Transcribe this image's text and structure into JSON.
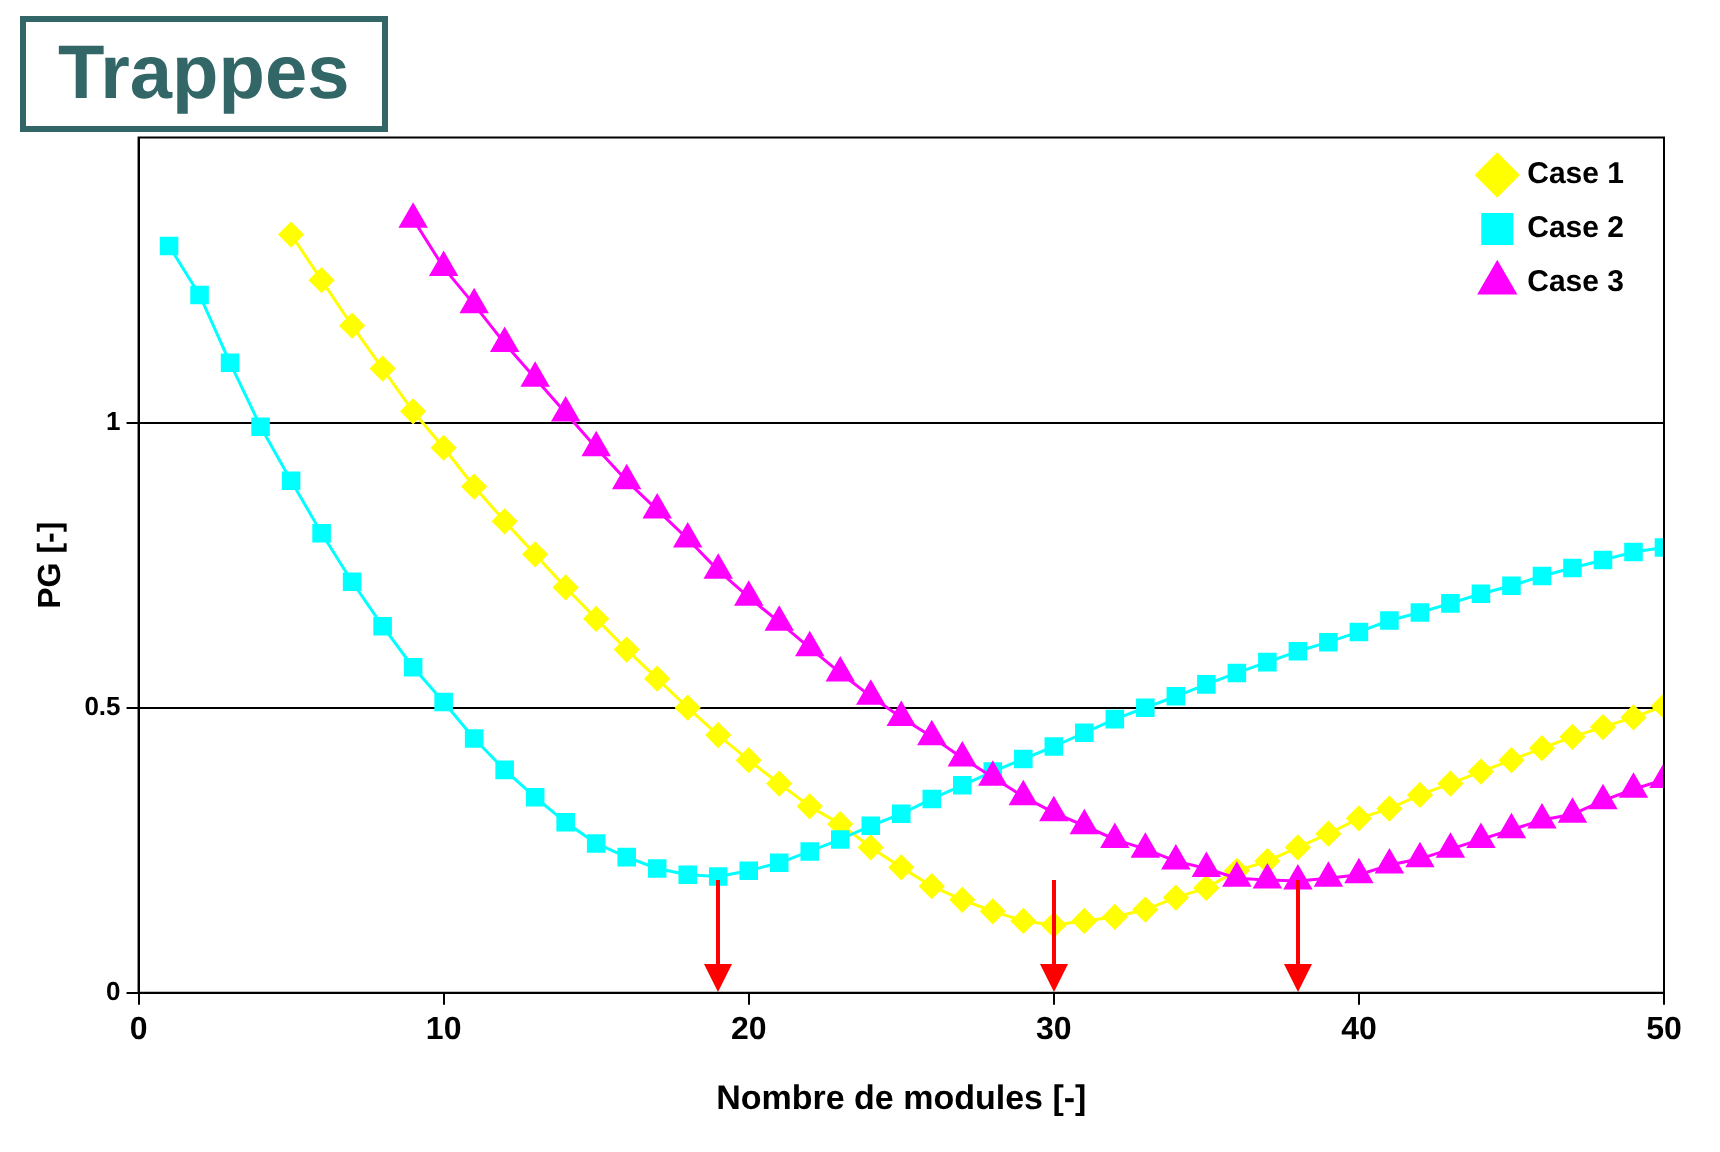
{
  "chart_data": {
    "type": "line",
    "title": "Trappes",
    "xlabel": "Nombre de modules [-]",
    "ylabel": "PG [-]",
    "xlim": [
      0,
      50
    ],
    "xticks": [
      0,
      10,
      20,
      30,
      40,
      50
    ],
    "ylim": [
      0,
      1.5
    ],
    "yticks": [
      0,
      0.5,
      1
    ],
    "grid": "y",
    "legend": "top right",
    "line_style": "solid",
    "series": [
      {
        "name": "Case 1",
        "color": "#ffff00",
        "marker": "diamond",
        "x": [
          5,
          6,
          7,
          8,
          9,
          10,
          11,
          12,
          13,
          14,
          15,
          16,
          17,
          18,
          19,
          20,
          21,
          22,
          23,
          24,
          25,
          26,
          27,
          28,
          29,
          30,
          31,
          32,
          33,
          34,
          35,
          36,
          37,
          38,
          39,
          40,
          41,
          42,
          43,
          44,
          45,
          46,
          47,
          48,
          49,
          50
        ],
        "values": [
          1.33,
          1.25,
          1.17,
          1.095,
          1.02,
          0.956,
          0.888,
          0.827,
          0.769,
          0.711,
          0.656,
          0.602,
          0.551,
          0.5,
          0.452,
          0.408,
          0.367,
          0.327,
          0.296,
          0.255,
          0.22,
          0.187,
          0.163,
          0.143,
          0.126,
          0.119,
          0.126,
          0.133,
          0.146,
          0.167,
          0.184,
          0.214,
          0.231,
          0.255,
          0.279,
          0.306,
          0.323,
          0.347,
          0.367,
          0.388,
          0.408,
          0.429,
          0.449,
          0.466,
          0.483,
          0.503
        ]
      },
      {
        "name": "Case 2",
        "color": "#00ffff",
        "marker": "square",
        "x": [
          1,
          2,
          3,
          4,
          5,
          6,
          7,
          8,
          9,
          10,
          11,
          12,
          13,
          14,
          15,
          16,
          17,
          18,
          19,
          20,
          21,
          22,
          23,
          24,
          25,
          26,
          27,
          28,
          29,
          30,
          31,
          32,
          33,
          34,
          35,
          36,
          37,
          38,
          39,
          40,
          41,
          42,
          43,
          44,
          45,
          46,
          47,
          48,
          49,
          50
        ],
        "values": [
          1.31,
          1.224,
          1.105,
          0.993,
          0.898,
          0.806,
          0.721,
          0.643,
          0.571,
          0.51,
          0.446,
          0.391,
          0.343,
          0.299,
          0.262,
          0.238,
          0.218,
          0.207,
          0.204,
          0.214,
          0.228,
          0.248,
          0.269,
          0.293,
          0.314,
          0.34,
          0.364,
          0.388,
          0.41,
          0.432,
          0.456,
          0.48,
          0.5,
          0.52,
          0.541,
          0.561,
          0.58,
          0.599,
          0.615,
          0.633,
          0.653,
          0.667,
          0.683,
          0.7,
          0.714,
          0.731,
          0.745,
          0.759,
          0.773,
          0.781
        ]
      },
      {
        "name": "Case 3",
        "color": "#ff00ff",
        "marker": "triangle",
        "x": [
          9,
          10,
          11,
          12,
          13,
          14,
          15,
          16,
          17,
          18,
          19,
          20,
          21,
          22,
          23,
          24,
          25,
          26,
          27,
          28,
          29,
          30,
          31,
          32,
          33,
          34,
          35,
          36,
          37,
          38,
          39,
          40,
          41,
          42,
          43,
          44,
          45,
          46,
          47,
          48,
          49,
          50
        ],
        "values": [
          1.357,
          1.272,
          1.207,
          1.139,
          1.078,
          1.017,
          0.956,
          0.898,
          0.847,
          0.796,
          0.741,
          0.694,
          0.65,
          0.605,
          0.561,
          0.52,
          0.483,
          0.449,
          0.412,
          0.378,
          0.344,
          0.316,
          0.293,
          0.269,
          0.252,
          0.231,
          0.218,
          0.201,
          0.198,
          0.196,
          0.201,
          0.207,
          0.224,
          0.235,
          0.252,
          0.269,
          0.286,
          0.303,
          0.313,
          0.337,
          0.357,
          0.374
        ]
      }
    ]
  }
}
